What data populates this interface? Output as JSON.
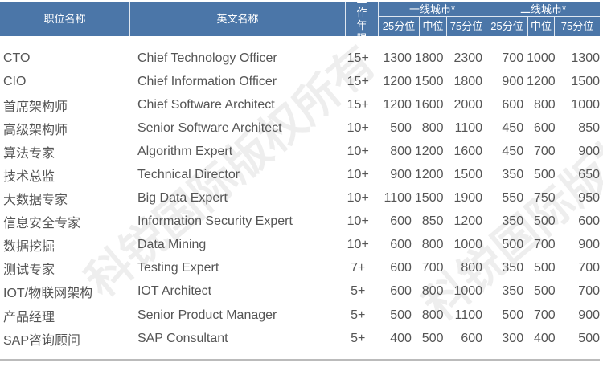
{
  "header": {
    "cn": "职位名称",
    "en": "英文名称",
    "years": "工作年限",
    "tier1": "一线城市*",
    "tier2": "二线城市*",
    "p25": "25分位",
    "p50": "中位",
    "p75": "75分位"
  },
  "watermark": "科锐国际版权所有",
  "rows": [
    {
      "cn": "CTO",
      "en": "Chief Technology Officer",
      "years": "15+",
      "t1": [
        "1300",
        "1800",
        "2300"
      ],
      "t2": [
        "700",
        "1000",
        "1300"
      ]
    },
    {
      "cn": "CIO",
      "en": "Chief Information Officer",
      "years": "15+",
      "t1": [
        "1200",
        "1500",
        "1800"
      ],
      "t2": [
        "900",
        "1200",
        "1500"
      ]
    },
    {
      "cn": "首席架构师",
      "en": "Chief Software Architect",
      "years": "15+",
      "t1": [
        "1200",
        "1600",
        "2000"
      ],
      "t2": [
        "600",
        "800",
        "1000"
      ]
    },
    {
      "cn": "高级架构师",
      "en": "Senior Software Architect",
      "years": "10+",
      "t1": [
        "500",
        "800",
        "1100"
      ],
      "t2": [
        "450",
        "600",
        "850"
      ]
    },
    {
      "cn": "算法专家",
      "en": "Algorithm Expert",
      "years": "10+",
      "t1": [
        "800",
        "1200",
        "1600"
      ],
      "t2": [
        "450",
        "700",
        "900"
      ]
    },
    {
      "cn": "技术总监",
      "en": "Technical Director",
      "years": "10+",
      "t1": [
        "900",
        "1200",
        "1500"
      ],
      "t2": [
        "350",
        "500",
        "650"
      ]
    },
    {
      "cn": "大数据专家",
      "en": "Big Data Expert",
      "years": "10+",
      "t1": [
        "1100",
        "1500",
        "1900"
      ],
      "t2": [
        "550",
        "750",
        "950"
      ]
    },
    {
      "cn": "信息安全专家",
      "en": "Information Security Expert",
      "years": "10+",
      "t1": [
        "600",
        "850",
        "1200"
      ],
      "t2": [
        "350",
        "500",
        "600"
      ]
    },
    {
      "cn": "数据挖掘",
      "en": "Data Mining",
      "years": "10+",
      "t1": [
        "600",
        "800",
        "1000"
      ],
      "t2": [
        "500",
        "700",
        "900"
      ]
    },
    {
      "cn": "测试专家",
      "en": "Testing Expert",
      "years": "7+",
      "t1": [
        "600",
        "700",
        "800"
      ],
      "t2": [
        "350",
        "500",
        "700"
      ]
    },
    {
      "cn": "IOT/物联网架构",
      "en": "IOT Architect",
      "years": "5+",
      "t1": [
        "600",
        "800",
        "1000"
      ],
      "t2": [
        "350",
        "500",
        "700"
      ]
    },
    {
      "cn": "产品经理",
      "en": "Senior Product Manager",
      "years": "5+",
      "t1": [
        "500",
        "800",
        "1100"
      ],
      "t2": [
        "500",
        "700",
        "900"
      ]
    },
    {
      "cn": "SAP咨询顾问",
      "en": "SAP Consultant",
      "years": "5+",
      "t1": [
        "400",
        "500",
        "600"
      ],
      "t2": [
        "300",
        "400",
        "500"
      ]
    }
  ]
}
